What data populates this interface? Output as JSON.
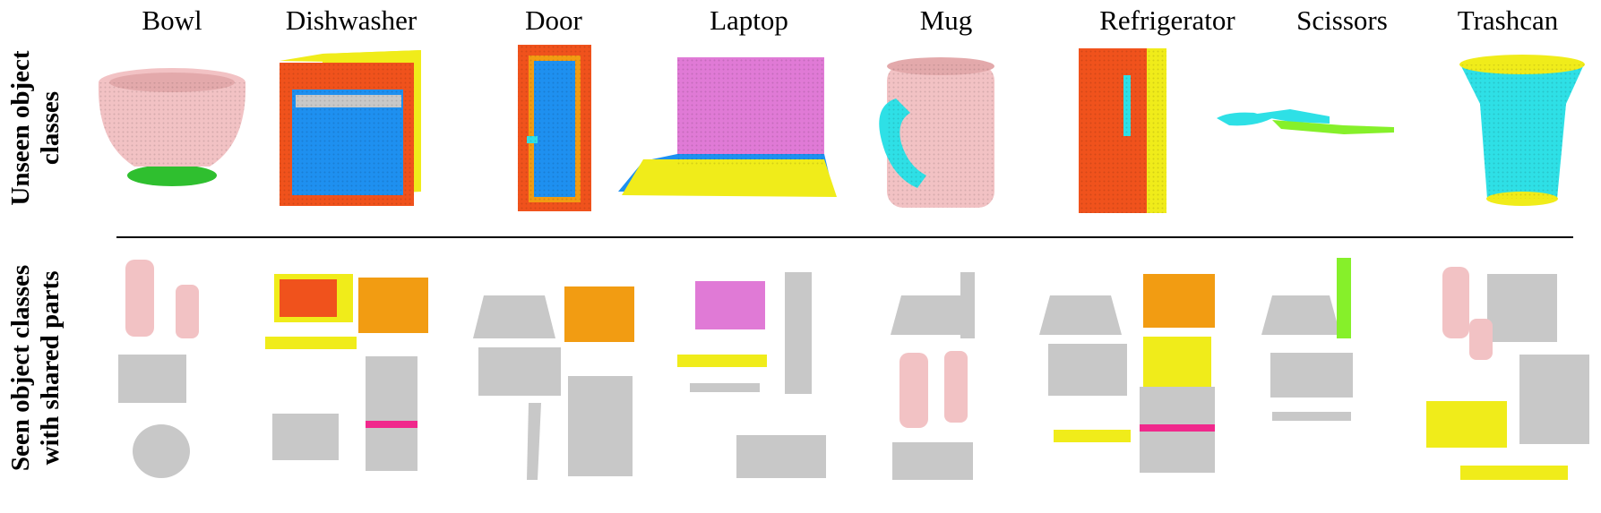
{
  "columns": [
    "Bowl",
    "Dishwasher",
    "Door",
    "Laptop",
    "Mug",
    "Refrigerator",
    "Scissors",
    "Trashcan"
  ],
  "rows": {
    "unseen": [
      "Unseen object",
      "classes"
    ],
    "seen": [
      "Seen object classes",
      "with shared parts"
    ]
  },
  "colors": {
    "pink": "#f2c2c4",
    "green": "#2fbf2f",
    "red": "#f0521c",
    "blue": "#1e90f0",
    "yellow": "#f0ec1a",
    "orange": "#f29c12",
    "violet": "#e07ad6",
    "cyan": "#2ee0e6",
    "lime": "#86f02a",
    "gray": "#c8c8c8",
    "magenta": "#f0288c"
  }
}
